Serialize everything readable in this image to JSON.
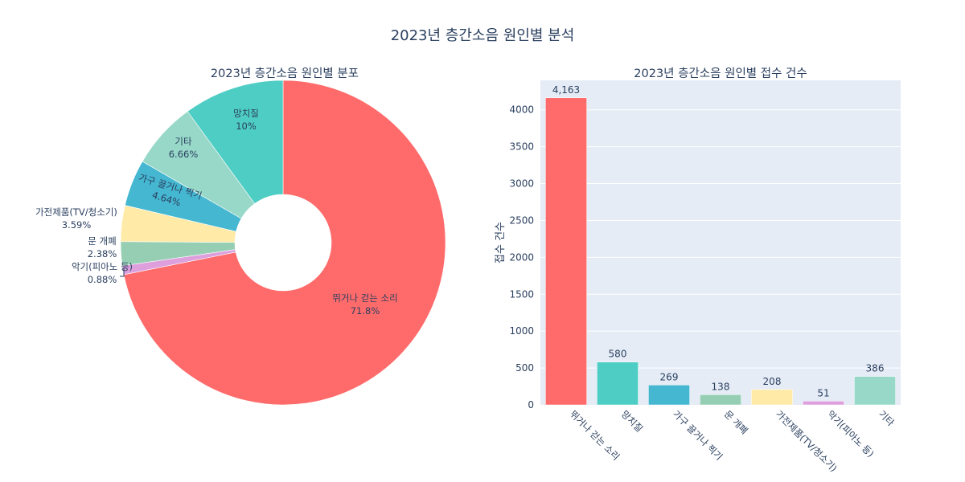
{
  "title": "2023년 층간소음 원인별 분석",
  "colors": [
    "#FF6B6B",
    "#4ECDC4",
    "#45B7D1",
    "#96CEB4",
    "#FFEAA7",
    "#DDA0DD",
    "#98D8C8"
  ],
  "chart_data": [
    {
      "type": "pie",
      "title": "2023년 층간소음 원인별 분포",
      "hole": true,
      "slices": [
        {
          "label": "뛰거나 걷는 소리",
          "percent_label": "71.8%",
          "value": 71.8,
          "color": "#FF6B6B"
        },
        {
          "label": "악기(피아노 등)",
          "percent_label": "0.88%",
          "value": 0.88,
          "color": "#DDA0DD"
        },
        {
          "label": "문 개폐",
          "percent_label": "2.38%",
          "value": 2.38,
          "color": "#96CEB4"
        },
        {
          "label": "가전제품(TV/청소기)",
          "percent_label": "3.59%",
          "value": 3.59,
          "color": "#FFEAA7"
        },
        {
          "label": "가구 끌거나 찍기",
          "percent_label": "4.64%",
          "value": 4.64,
          "color": "#45B7D1"
        },
        {
          "label": "기타",
          "percent_label": "6.66%",
          "value": 6.66,
          "color": "#98D8C8"
        },
        {
          "label": "망치질",
          "percent_label": "10%",
          "value": 10,
          "color": "#4ECDC4"
        }
      ]
    },
    {
      "type": "bar",
      "title": "2023년 층간소음 원인별 접수 건수",
      "ylabel": "접수 건수",
      "categories": [
        "뛰거나 걷는 소리",
        "망치질",
        "가구 끌거나 찍기",
        "문 개폐",
        "가전제품(TV/청소기)",
        "악기(피아노 등)",
        "기타"
      ],
      "values": [
        4163,
        580,
        269,
        138,
        208,
        51,
        386
      ],
      "value_labels": [
        "4,163",
        "580",
        "269",
        "138",
        "208",
        "51",
        "386"
      ],
      "bar_colors": [
        "#FF6B6B",
        "#4ECDC4",
        "#45B7D1",
        "#96CEB4",
        "#FFEAA7",
        "#DDA0DD",
        "#98D8C8"
      ],
      "ylim": [
        0,
        4400
      ],
      "yticks": [
        0,
        500,
        1000,
        1500,
        2000,
        2500,
        3000,
        3500,
        4000
      ],
      "grid": true
    }
  ]
}
